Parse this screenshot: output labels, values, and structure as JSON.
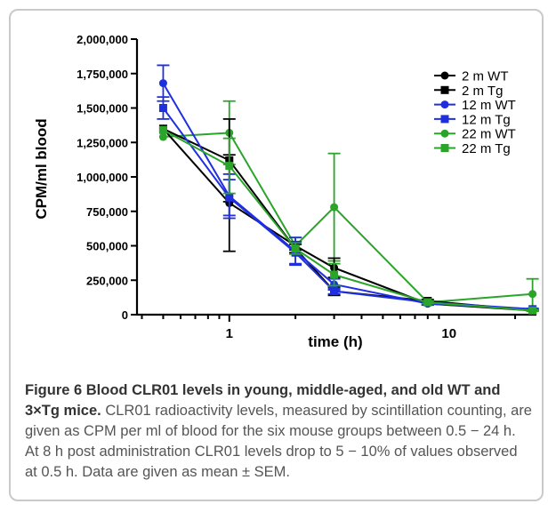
{
  "chart_data": {
    "type": "line",
    "xscale": "log",
    "xlabel": "time (h)",
    "ylabel": "CPM/ml blood",
    "xlim": [
      0.38,
      25
    ],
    "ylim": [
      0,
      2000000
    ],
    "x_ticks": [
      1,
      10
    ],
    "x_tick_labels": [
      "1",
      "10"
    ],
    "y_ticks": [
      0,
      250000,
      500000,
      750000,
      1000000,
      1250000,
      1500000,
      1750000,
      2000000
    ],
    "y_tick_labels": [
      "0",
      "250,000",
      "500,000",
      "750,000",
      "1,000,000",
      "1,250,000",
      "1,500,000",
      "1,750,000",
      "2,000,000"
    ],
    "x": [
      0.5,
      1,
      2,
      3,
      8,
      24
    ],
    "series": [
      {
        "name": "2 m WT",
        "color": "#000000",
        "marker": "circle",
        "values": [
          1350000,
          810000,
          500000,
          340000,
          80000,
          30000
        ],
        "errors": [
          0,
          350000,
          30000,
          70000,
          10000,
          5000
        ]
      },
      {
        "name": "2 m Tg",
        "color": "#000000",
        "marker": "square",
        "values": [
          1350000,
          1120000,
          480000,
          170000,
          100000,
          30000
        ],
        "errors": [
          0,
          300000,
          30000,
          30000,
          10000,
          5000
        ]
      },
      {
        "name": "12 m WT",
        "color": "#1f2fe0",
        "marker": "circle",
        "values": [
          1680000,
          860000,
          460000,
          220000,
          80000,
          40000
        ],
        "errors": [
          130000,
          160000,
          100000,
          40000,
          10000,
          5000
        ]
      },
      {
        "name": "12 m Tg",
        "color": "#1f2fe0",
        "marker": "square",
        "values": [
          1500000,
          850000,
          450000,
          170000,
          90000,
          40000
        ],
        "errors": [
          80000,
          130000,
          80000,
          20000,
          10000,
          5000
        ]
      },
      {
        "name": "22 m WT",
        "color": "#2aa52a",
        "marker": "circle",
        "values": [
          1290000,
          1320000,
          500000,
          780000,
          90000,
          150000
        ],
        "errors": [
          0,
          230000,
          60000,
          390000,
          10000,
          110000
        ]
      },
      {
        "name": "22 m Tg",
        "color": "#2aa52a",
        "marker": "square",
        "values": [
          1340000,
          1080000,
          480000,
          290000,
          90000,
          30000
        ],
        "errors": [
          0,
          200000,
          40000,
          80000,
          10000,
          5000
        ]
      }
    ],
    "legend_position": "top-right"
  },
  "caption": {
    "title": "Figure 6 Blood CLR01 levels in young, middle-aged, and old WT and 3×Tg mice.",
    "body": " CLR01 radioactivity levels, measured by scintillation counting, are given as CPM per ml of blood for the six mouse groups between 0.5 − 24 h. At 8 h post administration CLR01 levels drop to 5 − 10% of values observed at 0.5 h. Data are given as mean ± SEM."
  }
}
